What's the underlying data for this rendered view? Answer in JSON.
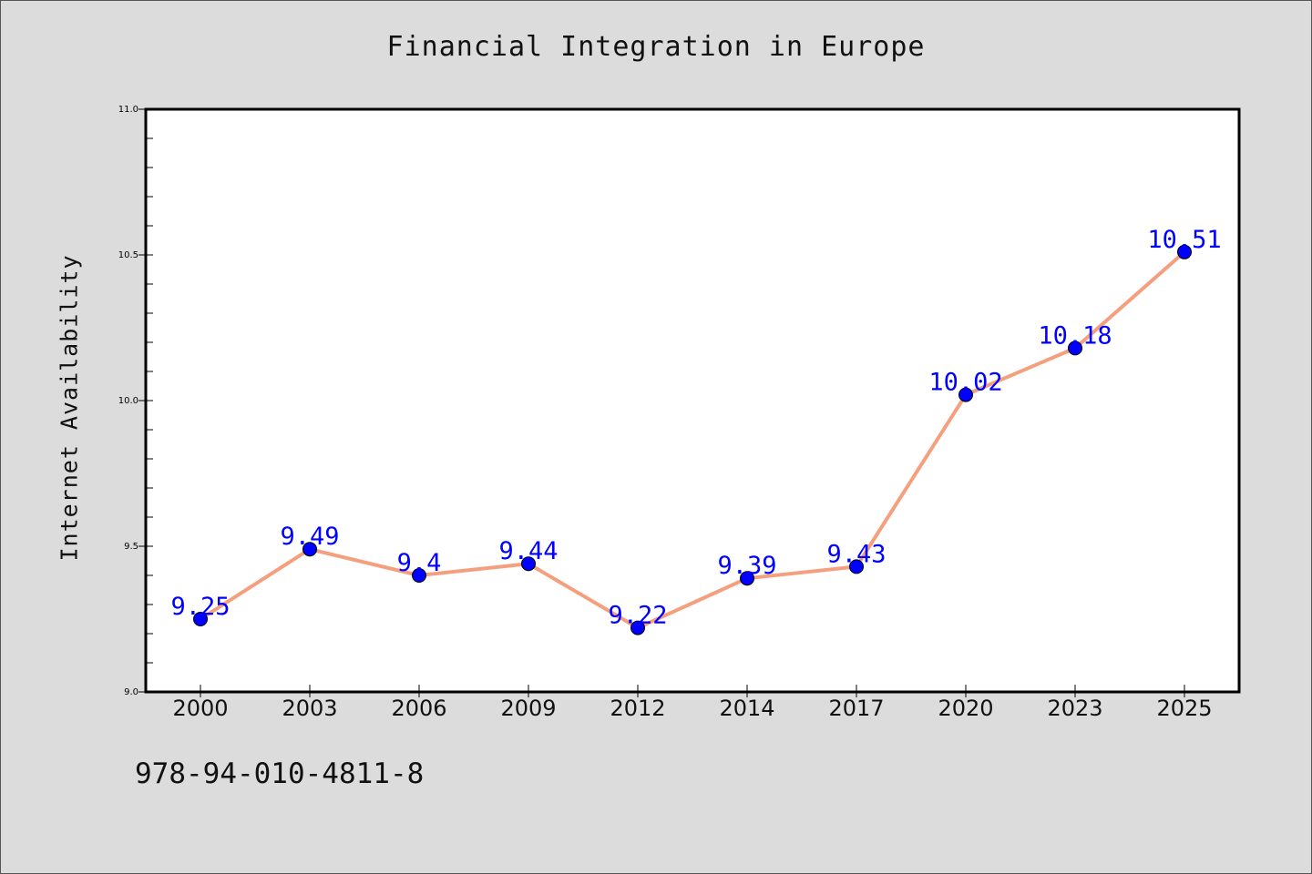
{
  "chart_data": {
    "type": "line",
    "title": "Financial Integration in Europe",
    "xlabel": "",
    "ylabel": "Internet Availability",
    "categories": [
      "2000",
      "2003",
      "2006",
      "2009",
      "2012",
      "2014",
      "2017",
      "2020",
      "2023",
      "2025"
    ],
    "series": [
      {
        "values": [
          9.25,
          9.49,
          9.4,
          9.44,
          9.22,
          9.39,
          9.43,
          10.02,
          10.18,
          10.51
        ],
        "data_labels": [
          "9.25",
          "9.49",
          "9.4",
          "9.44",
          "9.22",
          "9.39",
          "9.43",
          "10.02",
          "10.18",
          "10.51"
        ],
        "line_color": "#f4a07e",
        "marker_color": "#0000ff",
        "label_color": "#0000ff"
      }
    ],
    "ylim": [
      9.0,
      11.0
    ],
    "yticks": [
      "9.0",
      "9.5",
      "10.0",
      "10.5",
      "11.0"
    ],
    "grid": false,
    "legend": "none"
  },
  "footer_text": "978-94-010-4811-8"
}
